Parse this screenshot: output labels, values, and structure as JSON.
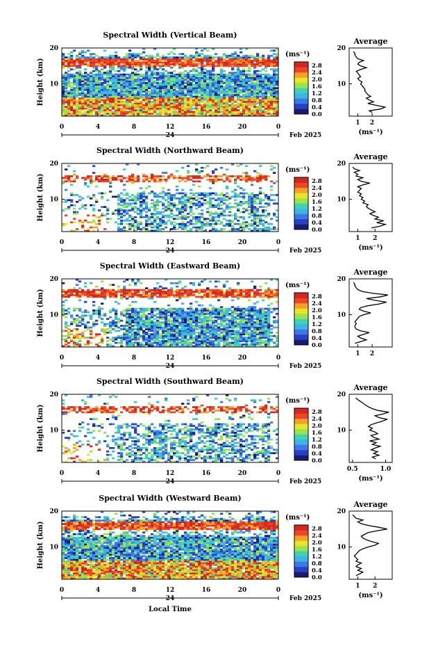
{
  "figure": {
    "x_axis_label": "Local Time",
    "date_label": "Feb 2025",
    "date_tick_label": "24",
    "y_axis_label": "Height (km)",
    "unit_label": "(ms⁻¹)",
    "average_title": "Average",
    "colorbar_ticks": [
      "0.0",
      "0.4",
      "0.8",
      "1.2",
      "1.6",
      "2.0",
      "2.4",
      "2.8"
    ],
    "colorbar_colors": [
      "#1a1a6e",
      "#2840c8",
      "#3c78e6",
      "#3cb4e6",
      "#40d2b4",
      "#9be150",
      "#e6e628",
      "#f5a028",
      "#eb4628",
      "#d2281e"
    ]
  },
  "chart_data": [
    {
      "type": "heatmap",
      "title": "Spectral Width (Vertical Beam)",
      "xlabel": "Local Time",
      "ylabel": "Height (km)",
      "x_ticks": [
        "0",
        "4",
        "8",
        "12",
        "16",
        "20",
        "0"
      ],
      "xlim": [
        0,
        24
      ],
      "y_ticks": [
        "20",
        "10"
      ],
      "ylim": [
        1,
        20
      ],
      "colorbar": {
        "label": "(ms⁻¹)",
        "range": [
          0.0,
          3.0
        ]
      },
      "coverage": "dense",
      "average": {
        "xlim": [
          0.4,
          3.4
        ],
        "x_ticks": [
          "1",
          "2"
        ],
        "xlabel": "(ms⁻¹)",
        "height": [
          2,
          2.5,
          3,
          3.5,
          4,
          4.5,
          5,
          5.5,
          6,
          6.5,
          7,
          7.5,
          8,
          8.5,
          9,
          9.5,
          10,
          10.5,
          11,
          11.5,
          12,
          12.5,
          13,
          13.5,
          14,
          14.5,
          15,
          15.5,
          16,
          16.5,
          17,
          17.5,
          18,
          18.5,
          19
        ],
        "value": [
          2.0,
          1.8,
          2.6,
          2.9,
          2.3,
          1.7,
          2.1,
          1.8,
          1.6,
          1.9,
          1.7,
          1.6,
          1.5,
          1.5,
          1.4,
          1.3,
          1.2,
          1.3,
          1.1,
          1.0,
          1.2,
          1.1,
          1.0,
          0.9,
          1.2,
          1.6,
          1.2,
          1.0,
          1.1,
          1.4,
          1.0,
          0.9,
          0.8,
          0.8,
          0.7
        ]
      }
    },
    {
      "type": "heatmap",
      "title": "Spectral Width (Northward Beam)",
      "xlabel": "Local Time",
      "ylabel": "Height (km)",
      "x_ticks": [
        "0",
        "4",
        "8",
        "12",
        "16",
        "20",
        "0"
      ],
      "xlim": [
        0,
        24
      ],
      "y_ticks": [
        "20",
        "10"
      ],
      "ylim": [
        1,
        20
      ],
      "colorbar": {
        "label": "(ms⁻¹)",
        "range": [
          0.0,
          3.0
        ]
      },
      "coverage": "sparse",
      "average": {
        "xlim": [
          0.5,
          3.0
        ],
        "x_ticks": [
          "1",
          "2"
        ],
        "xlabel": "(ms⁻¹)",
        "height": [
          2,
          2.5,
          3,
          3.5,
          4,
          4.5,
          5,
          5.5,
          6,
          6.5,
          7,
          7.5,
          8,
          8.5,
          9,
          9.5,
          10,
          10.5,
          11,
          11.5,
          12,
          12.5,
          13,
          13.5,
          14,
          14.5,
          15,
          15.5,
          16,
          16.5,
          17,
          17.5,
          18,
          18.5,
          19
        ],
        "value": [
          1.8,
          2.3,
          2.6,
          2.1,
          2.5,
          2.0,
          2.2,
          1.9,
          1.7,
          2.0,
          1.8,
          1.6,
          1.5,
          1.6,
          1.3,
          1.4,
          1.2,
          1.3,
          1.1,
          1.2,
          1.0,
          1.1,
          1.2,
          1.0,
          1.3,
          1.7,
          1.2,
          1.0,
          1.3,
          0.9,
          1.0,
          0.8,
          1.1,
          0.8,
          0.7
        ]
      }
    },
    {
      "type": "heatmap",
      "title": "Spectral Width (Eastward Beam)",
      "xlabel": "Local Time",
      "ylabel": "Height (km)",
      "x_ticks": [
        "0",
        "4",
        "8",
        "12",
        "16",
        "20",
        "0"
      ],
      "xlim": [
        0,
        24
      ],
      "y_ticks": [
        "20",
        "10"
      ],
      "ylim": [
        1,
        20
      ],
      "colorbar": {
        "label": "(ms⁻¹)",
        "range": [
          0.0,
          3.0
        ]
      },
      "coverage": "medium",
      "average": {
        "xlim": [
          0.4,
          3.4
        ],
        "x_ticks": [
          "1",
          "2"
        ],
        "xlabel": "",
        "height": [
          2,
          2.5,
          3,
          3.5,
          4,
          4.5,
          5,
          5.5,
          6,
          6.5,
          7,
          7.5,
          8,
          8.5,
          9,
          9.5,
          10,
          10.5,
          11,
          11.5,
          12,
          12.5,
          13,
          13.5,
          14,
          14.5,
          15,
          15.5,
          16,
          16.5,
          17,
          17.5,
          18,
          18.5,
          19
        ],
        "value": [
          0.8,
          1.2,
          1.6,
          1.2,
          1.0,
          1.4,
          1.8,
          1.2,
          0.9,
          0.8,
          0.8,
          0.9,
          0.8,
          0.9,
          1.0,
          1.1,
          1.4,
          1.9,
          1.4,
          1.1,
          1.2,
          1.7,
          2.5,
          3.0,
          2.2,
          1.6,
          2.6,
          3.1,
          2.0,
          1.3,
          1.0,
          0.9,
          0.8,
          0.8,
          0.7
        ]
      }
    },
    {
      "type": "heatmap",
      "title": "Spectral Width (Southward Beam)",
      "xlabel": "Local Time",
      "ylabel": "Height (km)",
      "x_ticks": [
        "0",
        "4",
        "8",
        "12",
        "16",
        "20",
        "0"
      ],
      "xlim": [
        0,
        24
      ],
      "y_ticks": [
        "20",
        "10"
      ],
      "ylim": [
        1,
        20
      ],
      "colorbar": {
        "label": "(ms⁻¹)",
        "range": [
          0.0,
          3.0
        ]
      },
      "coverage": "sparse",
      "average": {
        "xlim": [
          0.45,
          1.1
        ],
        "x_ticks": [
          "0.5",
          "1.0"
        ],
        "xlabel": "(ms⁻¹)",
        "height": [
          2,
          2.5,
          3,
          3.5,
          4,
          4.5,
          5,
          5.5,
          6,
          6.5,
          7,
          7.5,
          8,
          8.5,
          9,
          9.5,
          10,
          10.5,
          11,
          11.5,
          12,
          12.5,
          13,
          13.5,
          14,
          14.5,
          15,
          15.5,
          16,
          16.5,
          17,
          17.5,
          18,
          18.5,
          19
        ],
        "value": [
          0.85,
          0.8,
          0.9,
          0.82,
          0.88,
          0.78,
          0.84,
          0.92,
          0.8,
          0.86,
          0.76,
          0.9,
          0.82,
          0.78,
          0.88,
          0.84,
          0.76,
          0.8,
          0.74,
          0.78,
          0.86,
          0.95,
          1.02,
          0.9,
          0.84,
          0.96,
          1.05,
          0.88,
          0.8,
          0.74,
          0.7,
          0.66,
          0.62,
          0.58,
          0.55
        ]
      }
    },
    {
      "type": "heatmap",
      "title": "Spectral Width (Westward Beam)",
      "xlabel": "Local Time",
      "ylabel": "Height (km)",
      "x_ticks": [
        "0",
        "4",
        "8",
        "12",
        "16",
        "20",
        "0"
      ],
      "xlim": [
        0,
        24
      ],
      "y_ticks": [
        "20",
        "10"
      ],
      "ylim": [
        1,
        20
      ],
      "colorbar": {
        "label": "(ms⁻¹)",
        "range": [
          0.0,
          3.0
        ]
      },
      "coverage": "dense",
      "average": {
        "xlim": [
          0.5,
          3.0
        ],
        "x_ticks": [
          "1",
          "2"
        ],
        "xlabel": "(ms⁻¹)",
        "height": [
          2,
          2.5,
          3,
          3.5,
          4,
          4.5,
          5,
          5.5,
          6,
          6.5,
          7,
          7.5,
          8,
          8.5,
          9,
          9.5,
          10,
          10.5,
          11,
          11.5,
          12,
          12.5,
          13,
          13.5,
          14,
          14.5,
          15,
          15.5,
          16,
          16.5,
          17,
          17.5,
          18,
          18.5,
          19
        ],
        "value": [
          0.9,
          1.1,
          1.3,
          1.0,
          1.2,
          0.9,
          1.0,
          1.2,
          0.9,
          1.0,
          0.9,
          0.8,
          0.9,
          1.0,
          1.1,
          1.3,
          1.6,
          2.0,
          2.2,
          1.8,
          1.5,
          1.3,
          1.2,
          1.4,
          1.6,
          2.1,
          2.7,
          2.2,
          1.6,
          1.2,
          1.0,
          1.3,
          0.9,
          0.8,
          0.7
        ]
      }
    }
  ]
}
